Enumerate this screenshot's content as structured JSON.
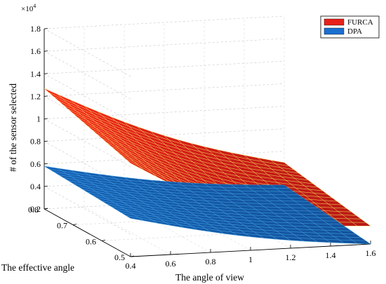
{
  "chart_data": {
    "type": "surface",
    "multiplier_label": "×10",
    "multiplier_exponent": "4",
    "xlabel": "The angle of view",
    "ylabel": "The effective angle",
    "zlabel": "# of the sensor selected",
    "x_ticks": [
      "0.4",
      "0.6",
      "0.8",
      "1",
      "1.2",
      "1.4",
      "1.6"
    ],
    "y_ticks": [
      "0.5",
      "0.6",
      "0.7",
      "0.8"
    ],
    "z_ticks": [
      "0.2",
      "0.4",
      "0.6",
      "0.8",
      "1",
      "1.2",
      "1.4",
      "1.6",
      "1.8"
    ],
    "xlim": [
      0.4,
      1.6
    ],
    "ylim": [
      0.5,
      0.8
    ],
    "zlim": [
      0.2,
      1.8
    ],
    "grid": true,
    "legend_position": "top-right",
    "series": [
      {
        "name": "FURCA",
        "color": "#e8201a",
        "edge_color": "#f2e45a",
        "x": [
          0.4,
          1.6
        ],
        "y": [
          0.5,
          0.8
        ],
        "z_at_corners": {
          "x0_y0": 1.03,
          "x0_y1": 1.27,
          "x1_y0": 0.36,
          "x1_y1": 0.5
        }
      },
      {
        "name": "DPA",
        "color": "#1a6fd0",
        "edge_color": "#3fa8e8",
        "x": [
          0.4,
          1.6
        ],
        "y": [
          0.5,
          0.8
        ],
        "z_at_corners": {
          "x0_y0": 0.54,
          "x0_y1": 0.58,
          "x1_y0": 0.2,
          "x1_y1": 0.3
        }
      }
    ]
  }
}
